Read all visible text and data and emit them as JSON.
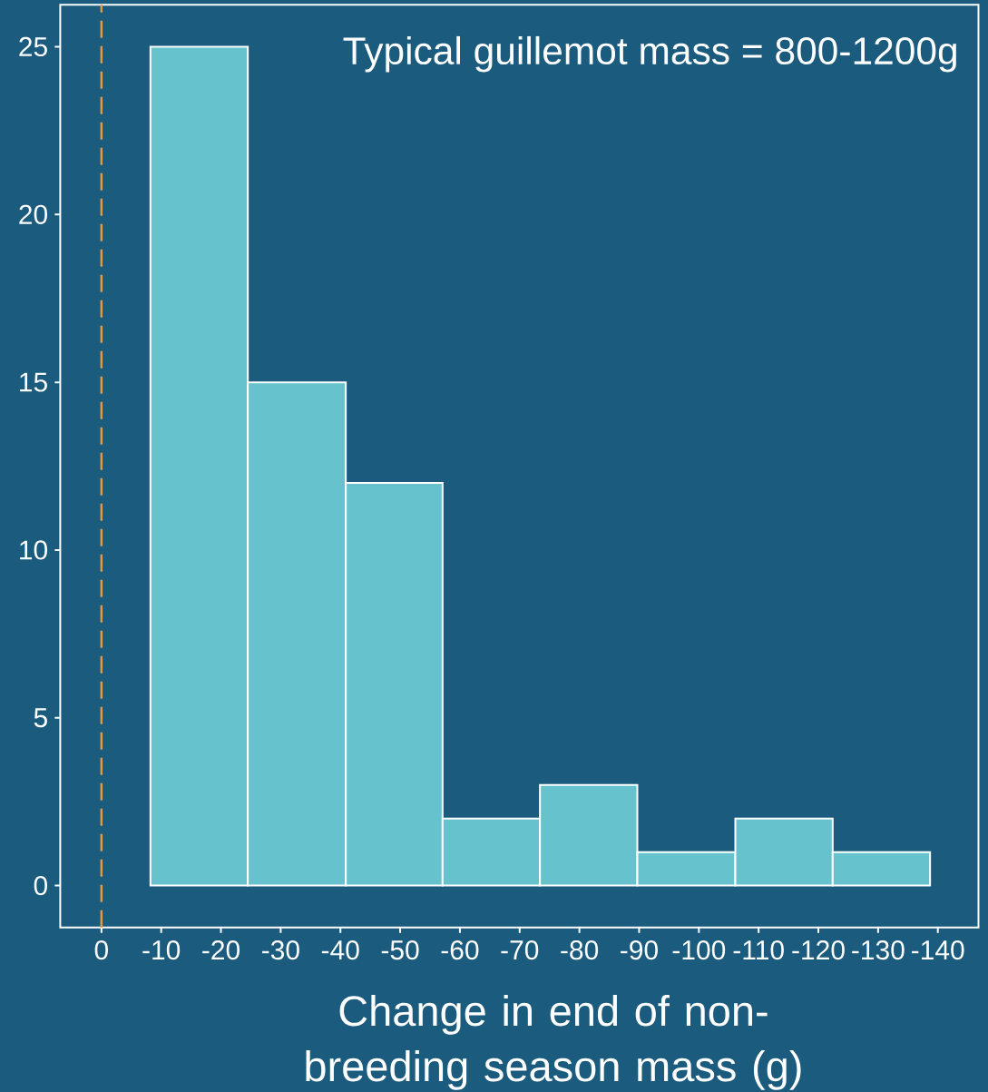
{
  "chart_data": {
    "type": "histogram",
    "xlabel": "Change in end of non-breeding season mass (g)",
    "annotations": [
      "Typical guillemot mass = 800-1200g"
    ],
    "bins": [
      -8.2,
      -24.5,
      -40.9,
      -57.1,
      -73.4,
      -89.7,
      -106.1,
      -122.4,
      -138.7
    ],
    "values": [
      25,
      15,
      12,
      2,
      3,
      1,
      2,
      1
    ],
    "color": "#66c2cd",
    "xlim": [
      6.9,
      -146.8
    ],
    "ylim": [
      -1.25,
      26.25
    ],
    "xticks": [
      0,
      -10,
      -20,
      -30,
      -40,
      -50,
      -60,
      -70,
      -80,
      -90,
      -100,
      -110,
      -120,
      -130,
      -140
    ],
    "yticks": [
      0,
      5,
      10,
      15,
      20,
      25
    ],
    "ref_lines": [
      {
        "axis": "x",
        "value": 0,
        "color": "#dd9a4e",
        "line_style": "dashed"
      }
    ]
  }
}
